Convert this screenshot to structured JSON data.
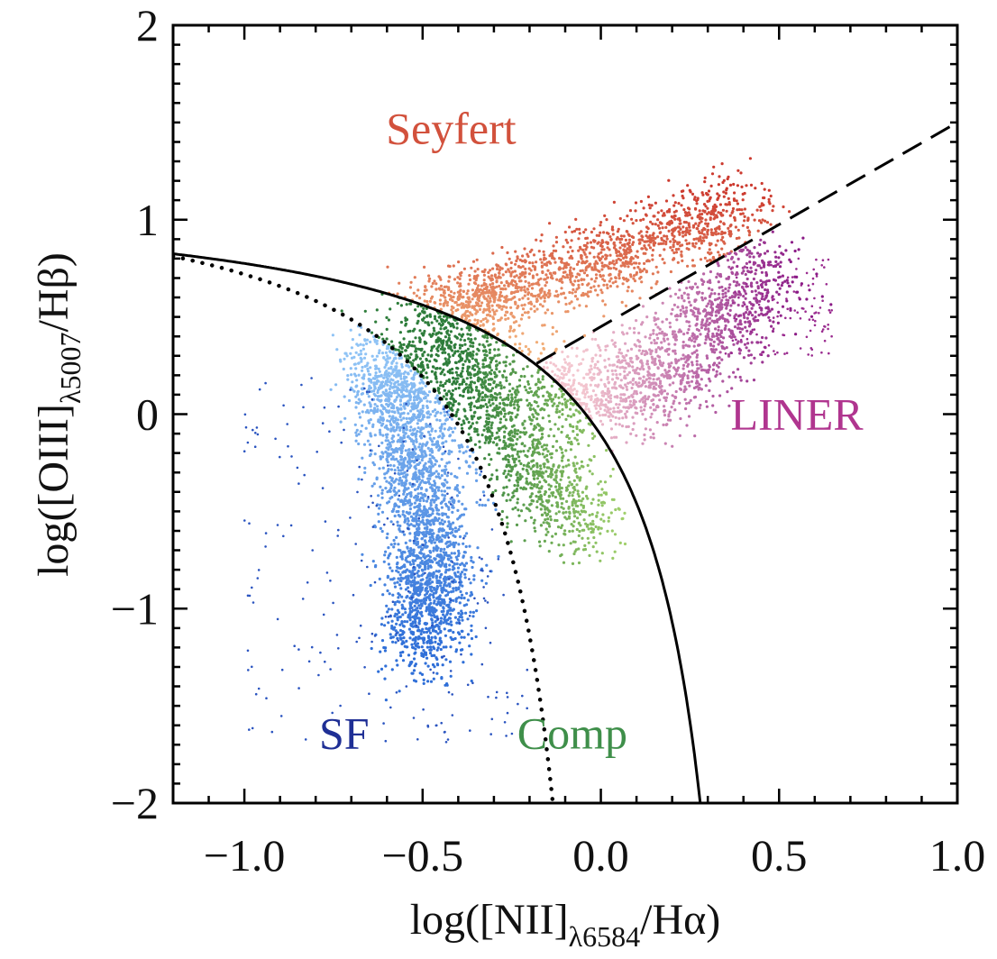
{
  "chart_data": {
    "type": "scatter",
    "xlim": [
      -1.2,
      1.0
    ],
    "ylim": [
      -2.0,
      2.0
    ],
    "xticks": [
      -1.0,
      -0.5,
      0.0,
      0.5,
      1.0
    ],
    "xtick_labels": [
      "−1.0",
      "−0.5",
      "0.0",
      "0.5",
      "1.0"
    ],
    "yticks": [
      -2,
      -1,
      0,
      1,
      2
    ],
    "ytick_labels": [
      "−2",
      "−1",
      "0",
      "1",
      "2"
    ],
    "xlabel": {
      "pre": "log([NII]",
      "sub": "λ6584",
      "post": "/Hα)"
    },
    "ylabel": {
      "pre": "log([OIII]",
      "sub": "λ5007",
      "post": "/Hβ)"
    },
    "grid": false,
    "legend": "none",
    "region_labels": {
      "seyfert": {
        "text": "Seyfert",
        "x": -0.42,
        "y": 1.47,
        "color": "#d2513c"
      },
      "liner": {
        "text": "LINER",
        "x": 0.55,
        "y": 0.0,
        "color": "#b0358f"
      },
      "sf": {
        "text": "SF",
        "x": -0.72,
        "y": -1.64,
        "color": "#1f2f95"
      },
      "comp": {
        "text": "Comp",
        "x": -0.08,
        "y": -1.64,
        "color": "#3f8f4a"
      }
    },
    "curves": {
      "kewley_2001": {
        "equation": "y = 0.61/(x - 0.47) + 1.19",
        "style": "solid",
        "color": "#000000"
      },
      "kauffmann_2003": {
        "equation": "y = 0.61/(x - 0.05) + 1.3",
        "style": "dotted",
        "color": "#000000"
      },
      "schawinski_2007": {
        "equation": "y = 1.05x + 0.45",
        "x_range": [
          -0.18,
          1.0
        ],
        "style": "dashed",
        "color": "#000000"
      }
    },
    "series": [
      {
        "name": "SF",
        "color": "#3a86e8",
        "x_range": [
          -1.1,
          -0.25
        ],
        "y_range": [
          -1.45,
          0.35
        ]
      },
      {
        "name": "Comp",
        "color": "#4e9b4c",
        "x_range": [
          -0.55,
          0.1
        ],
        "y_range": [
          -0.8,
          0.6
        ]
      },
      {
        "name": "Seyfert",
        "color": "#e5613f",
        "x_range": [
          -0.55,
          0.5
        ],
        "y_range": [
          0.3,
          1.35
        ]
      },
      {
        "name": "LINER",
        "color": "#c43591",
        "x_range": [
          -0.2,
          0.68
        ],
        "y_range": [
          -0.45,
          0.95
        ]
      }
    ]
  }
}
